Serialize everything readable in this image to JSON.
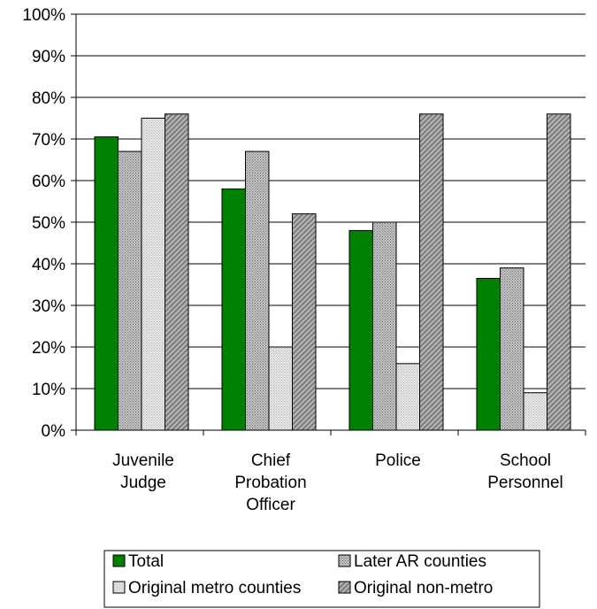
{
  "chart_data": {
    "type": "bar",
    "categories": [
      [
        "Juvenile",
        "Judge"
      ],
      [
        "Chief",
        "Probation",
        "Officer"
      ],
      [
        "Police"
      ],
      [
        "School",
        "Personnel"
      ]
    ],
    "series": [
      {
        "name": "Total",
        "values": [
          70.5,
          58,
          48,
          36.5
        ],
        "color": "#008000",
        "pattern": "solid"
      },
      {
        "name": "Later AR counties",
        "values": [
          67,
          67,
          50,
          39
        ],
        "color": "#a6a6a6",
        "pattern": "dots"
      },
      {
        "name": "Original metro counties",
        "values": [
          75,
          20,
          16,
          9
        ],
        "color": "#d9d9d9",
        "pattern": "fine-dots"
      },
      {
        "name": "Original non-metro",
        "values": [
          76,
          52,
          76,
          76
        ],
        "color": "#9a9a9a",
        "pattern": "hatch"
      }
    ],
    "ylim": [
      0,
      100
    ],
    "yticks": [
      "0%",
      "10%",
      "20%",
      "30%",
      "40%",
      "50%",
      "60%",
      "70%",
      "80%",
      "90%",
      "100%"
    ],
    "grid": true,
    "legend_position": "bottom",
    "title": "",
    "xlabel": "",
    "ylabel": ""
  }
}
